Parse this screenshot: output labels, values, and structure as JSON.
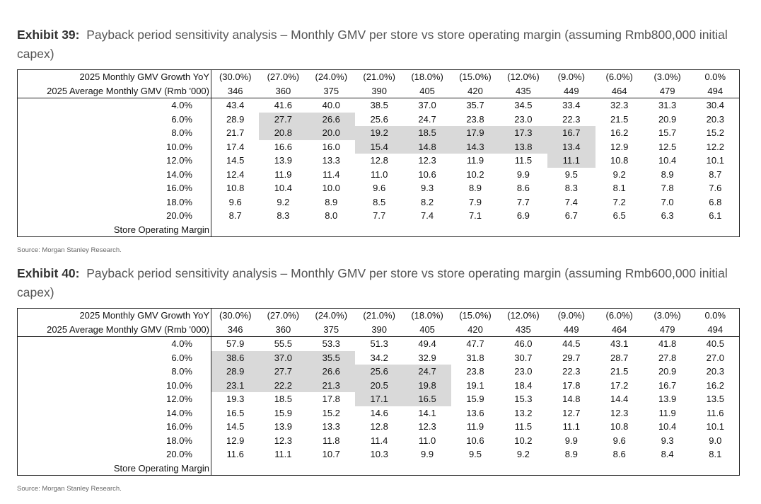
{
  "exhibits": [
    {
      "label": "Exhibit 39:",
      "title": "Payback period sensitivity analysis – Monthly GMV per store vs store operating margin (assuming Rmb800,000 initial capex)",
      "growth_label": "2025 Monthly GMV Growth YoY",
      "growth": [
        "(30.0%)",
        "(27.0%)",
        "(24.0%)",
        "(21.0%)",
        "(18.0%)",
        "(15.0%)",
        "(12.0%)",
        "(9.0%)",
        "(6.0%)",
        "(3.0%)",
        "0.0%"
      ],
      "gmv_label": "2025 Average Monthly GMV (Rmb '000)",
      "gmv": [
        "346",
        "360",
        "375",
        "390",
        "405",
        "420",
        "435",
        "449",
        "464",
        "479",
        "494"
      ],
      "margins": [
        "4.0%",
        "6.0%",
        "8.0%",
        "10.0%",
        "12.0%",
        "14.0%",
        "16.0%",
        "18.0%",
        "20.0%"
      ],
      "rows": [
        [
          "43.4",
          "41.6",
          "40.0",
          "38.5",
          "37.0",
          "35.7",
          "34.5",
          "33.4",
          "32.3",
          "31.3",
          "30.4"
        ],
        [
          "28.9",
          "27.7",
          "26.6",
          "25.6",
          "24.7",
          "23.8",
          "23.0",
          "22.3",
          "21.5",
          "20.9",
          "20.3"
        ],
        [
          "21.7",
          "20.8",
          "20.0",
          "19.2",
          "18.5",
          "17.9",
          "17.3",
          "16.7",
          "16.2",
          "15.7",
          "15.2"
        ],
        [
          "17.4",
          "16.6",
          "16.0",
          "15.4",
          "14.8",
          "14.3",
          "13.8",
          "13.4",
          "12.9",
          "12.5",
          "12.2"
        ],
        [
          "14.5",
          "13.9",
          "13.3",
          "12.8",
          "12.3",
          "11.9",
          "11.5",
          "11.1",
          "10.8",
          "10.4",
          "10.1"
        ],
        [
          "12.4",
          "11.9",
          "11.4",
          "11.0",
          "10.6",
          "10.2",
          "9.9",
          "9.5",
          "9.2",
          "8.9",
          "8.7"
        ],
        [
          "10.8",
          "10.4",
          "10.0",
          "9.6",
          "9.3",
          "8.9",
          "8.6",
          "8.3",
          "8.1",
          "7.8",
          "7.6"
        ],
        [
          "9.6",
          "9.2",
          "8.9",
          "8.5",
          "8.2",
          "7.9",
          "7.7",
          "7.4",
          "7.2",
          "7.0",
          "6.8"
        ],
        [
          "8.7",
          "8.3",
          "8.0",
          "7.7",
          "7.4",
          "7.1",
          "6.9",
          "6.7",
          "6.5",
          "6.3",
          "6.1"
        ]
      ],
      "highlight": [
        [
          1,
          1
        ],
        [
          1,
          2
        ],
        [
          2,
          1
        ],
        [
          2,
          2
        ],
        [
          2,
          3
        ],
        [
          2,
          4
        ],
        [
          2,
          5
        ],
        [
          2,
          6
        ],
        [
          2,
          7
        ],
        [
          3,
          3
        ],
        [
          3,
          4
        ],
        [
          3,
          5
        ],
        [
          3,
          6
        ],
        [
          3,
          7
        ],
        [
          4,
          7
        ]
      ],
      "footer_label": "Store Operating Margin",
      "source": "Source: Morgan Stanley Research."
    },
    {
      "label": "Exhibit 40:",
      "title": "Payback period sensitivity analysis – Monthly GMV per store vs store operating margin (assuming Rmb600,000 initial capex)",
      "growth_label": "2025 Monthly GMV Growth YoY",
      "growth": [
        "(30.0%)",
        "(27.0%)",
        "(24.0%)",
        "(21.0%)",
        "(18.0%)",
        "(15.0%)",
        "(12.0%)",
        "(9.0%)",
        "(6.0%)",
        "(3.0%)",
        "0.0%"
      ],
      "gmv_label": "2025 Average Monthly GMV (Rmb '000)",
      "gmv": [
        "346",
        "360",
        "375",
        "390",
        "405",
        "420",
        "435",
        "449",
        "464",
        "479",
        "494"
      ],
      "margins": [
        "4.0%",
        "6.0%",
        "8.0%",
        "10.0%",
        "12.0%",
        "14.0%",
        "16.0%",
        "18.0%",
        "20.0%"
      ],
      "rows": [
        [
          "57.9",
          "55.5",
          "53.3",
          "51.3",
          "49.4",
          "47.7",
          "46.0",
          "44.5",
          "43.1",
          "41.8",
          "40.5"
        ],
        [
          "38.6",
          "37.0",
          "35.5",
          "34.2",
          "32.9",
          "31.8",
          "30.7",
          "29.7",
          "28.7",
          "27.8",
          "27.0"
        ],
        [
          "28.9",
          "27.7",
          "26.6",
          "25.6",
          "24.7",
          "23.8",
          "23.0",
          "22.3",
          "21.5",
          "20.9",
          "20.3"
        ],
        [
          "23.1",
          "22.2",
          "21.3",
          "20.5",
          "19.8",
          "19.1",
          "18.4",
          "17.8",
          "17.2",
          "16.7",
          "16.2"
        ],
        [
          "19.3",
          "18.5",
          "17.8",
          "17.1",
          "16.5",
          "15.9",
          "15.3",
          "14.8",
          "14.4",
          "13.9",
          "13.5"
        ],
        [
          "16.5",
          "15.9",
          "15.2",
          "14.6",
          "14.1",
          "13.6",
          "13.2",
          "12.7",
          "12.3",
          "11.9",
          "11.6"
        ],
        [
          "14.5",
          "13.9",
          "13.3",
          "12.8",
          "12.3",
          "11.9",
          "11.5",
          "11.1",
          "10.8",
          "10.4",
          "10.1"
        ],
        [
          "12.9",
          "12.3",
          "11.8",
          "11.4",
          "11.0",
          "10.6",
          "10.2",
          "9.9",
          "9.6",
          "9.3",
          "9.0"
        ],
        [
          "11.6",
          "11.1",
          "10.7",
          "10.3",
          "9.9",
          "9.5",
          "9.2",
          "8.9",
          "8.6",
          "8.4",
          "8.1"
        ]
      ],
      "highlight": [
        [
          1,
          0
        ],
        [
          1,
          1
        ],
        [
          1,
          2
        ],
        [
          2,
          0
        ],
        [
          2,
          1
        ],
        [
          2,
          2
        ],
        [
          2,
          3
        ],
        [
          2,
          4
        ],
        [
          3,
          0
        ],
        [
          3,
          1
        ],
        [
          3,
          2
        ],
        [
          3,
          3
        ],
        [
          3,
          4
        ],
        [
          4,
          3
        ],
        [
          4,
          4
        ]
      ],
      "footer_label": "Store Operating Margin",
      "source": "Source: Morgan Stanley Research."
    }
  ]
}
